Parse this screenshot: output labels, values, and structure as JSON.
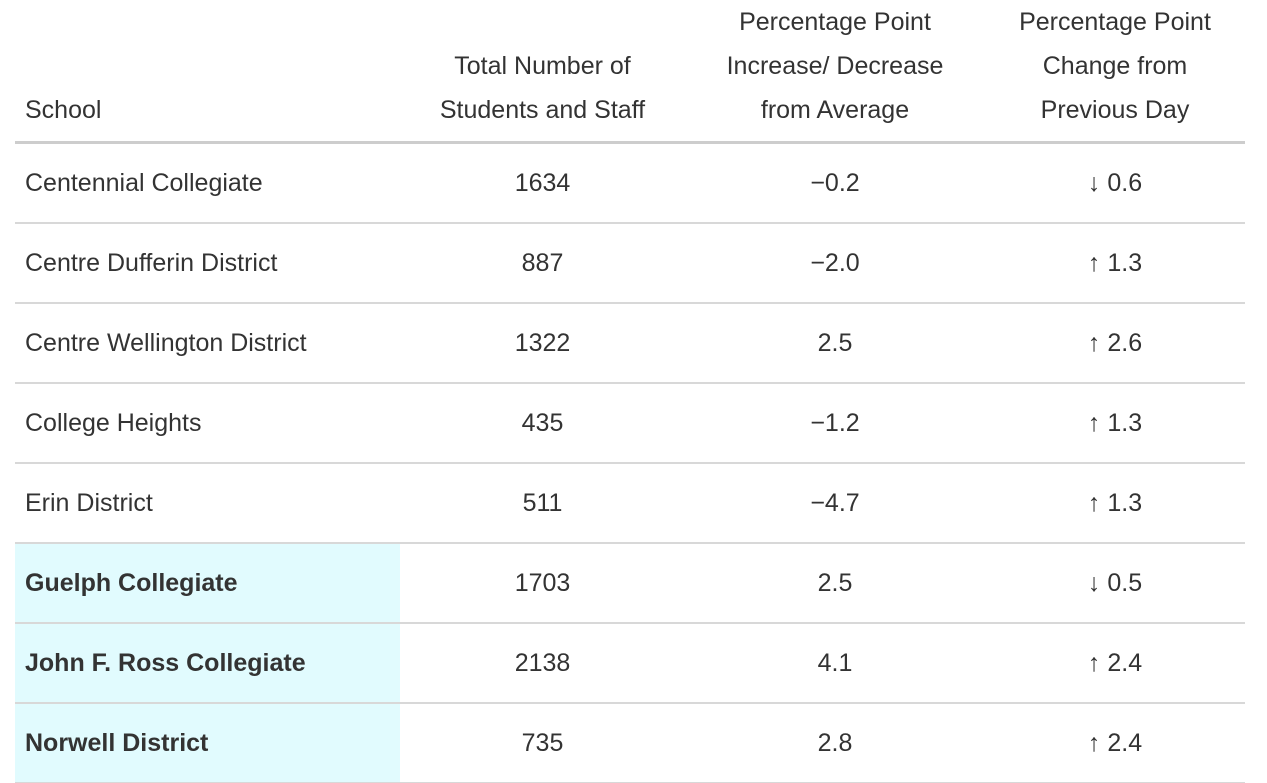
{
  "colors": {
    "highlight_background": "#e1fbfe",
    "row_border": "#d8d8d8",
    "header_border": "#cdcdcd",
    "text": "#333333"
  },
  "chart_data": {
    "type": "table",
    "columns": [
      {
        "id": "school",
        "label": "School",
        "lines": [
          "School"
        ],
        "align": "left"
      },
      {
        "id": "total",
        "label": "Total Number of Students and Staff",
        "lines": [
          "Total Number of",
          "Students and Staff"
        ],
        "align": "center"
      },
      {
        "id": "avg_change",
        "label": "Percentage Point Increase/ Decrease from Average",
        "lines": [
          "Percentage Point",
          "Increase/ Decrease",
          "from Average"
        ],
        "align": "center"
      },
      {
        "id": "prev_day",
        "label": "Percentage Point Change from Previous Day",
        "lines": [
          "Percentage Point",
          "Change from",
          "Previous Day"
        ],
        "align": "center"
      }
    ],
    "rows": [
      {
        "school": "Centennial Collegiate",
        "total": "1634",
        "avg_change": "−0.2",
        "prev_day": {
          "direction": "down",
          "arrow": "↓",
          "value": "0.6"
        },
        "highlighted": false
      },
      {
        "school": "Centre Dufferin District",
        "total": "887",
        "avg_change": "−2.0",
        "prev_day": {
          "direction": "up",
          "arrow": "↑",
          "value": "1.3"
        },
        "highlighted": false
      },
      {
        "school": "Centre Wellington District",
        "total": "1322",
        "avg_change": "2.5",
        "prev_day": {
          "direction": "up",
          "arrow": "↑",
          "value": "2.6"
        },
        "highlighted": false
      },
      {
        "school": "College Heights",
        "total": "435",
        "avg_change": "−1.2",
        "prev_day": {
          "direction": "up",
          "arrow": "↑",
          "value": "1.3"
        },
        "highlighted": false
      },
      {
        "school": "Erin District",
        "total": "511",
        "avg_change": "−4.7",
        "prev_day": {
          "direction": "up",
          "arrow": "↑",
          "value": "1.3"
        },
        "highlighted": false
      },
      {
        "school": "Guelph Collegiate",
        "total": "1703",
        "avg_change": "2.5",
        "prev_day": {
          "direction": "down",
          "arrow": "↓",
          "value": "0.5"
        },
        "highlighted": true
      },
      {
        "school": "John F. Ross Collegiate",
        "total": "2138",
        "avg_change": "4.1",
        "prev_day": {
          "direction": "up",
          "arrow": "↑",
          "value": "2.4"
        },
        "highlighted": true
      },
      {
        "school": "Norwell District",
        "total": "735",
        "avg_change": "2.8",
        "prev_day": {
          "direction": "up",
          "arrow": "↑",
          "value": "2.4"
        },
        "highlighted": true
      }
    ]
  }
}
